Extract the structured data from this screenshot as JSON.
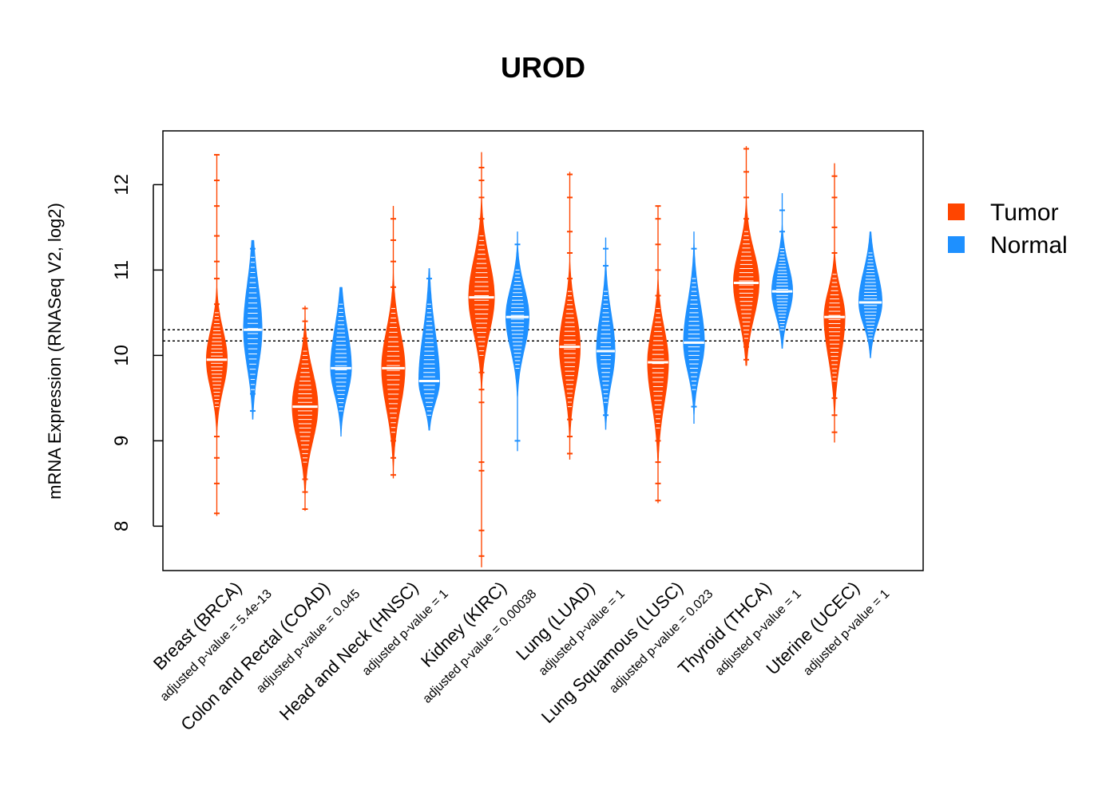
{
  "chart_data": {
    "type": "beanplot",
    "title": "UROD",
    "ylabel": "mRNA Expression (RNASeq V2, log2)",
    "xlabel": "",
    "ylim": [
      7.48,
      12.63
    ],
    "yticks": [
      8,
      9,
      10,
      11,
      12
    ],
    "reference_lines": [
      10.17,
      10.3
    ],
    "legend": {
      "position": "right",
      "entries": [
        {
          "label": "Tumor",
          "color": "#FF4500"
        },
        {
          "label": "Normal",
          "color": "#1E90FF"
        }
      ]
    },
    "groups": [
      {
        "name": "Breast (BRCA)",
        "pvalue_label": "adjusted p-value = 5.4e-13",
        "tumor": {
          "median": 9.95,
          "min": 8.12,
          "max": 12.35,
          "core_min": 9.4,
          "core_max": 10.5,
          "width": 0.45,
          "outliers": [
            8.15,
            8.5,
            8.8,
            9.05,
            10.6,
            10.9,
            11.1,
            11.4,
            11.75,
            12.05,
            12.35
          ]
        },
        "normal": {
          "median": 10.3,
          "min": 9.25,
          "max": 11.35,
          "core_min": 9.6,
          "core_max": 11.15,
          "width": 0.4,
          "outliers": [
            9.35,
            9.55,
            11.25
          ]
        }
      },
      {
        "name": "Colon and Rectal (COAD)",
        "pvalue_label": "adjusted p-value = 0.045",
        "tumor": {
          "median": 9.4,
          "min": 8.18,
          "max": 10.58,
          "core_min": 8.75,
          "core_max": 10.05,
          "width": 0.55,
          "outliers": [
            8.2,
            8.4,
            8.55,
            10.2,
            10.4,
            10.55
          ]
        },
        "normal": {
          "median": 9.85,
          "min": 9.05,
          "max": 10.8,
          "core_min": 9.35,
          "core_max": 10.6,
          "width": 0.45,
          "outliers": []
        }
      },
      {
        "name": "Head and Neck (HNSC)",
        "pvalue_label": "adjusted p-value = 1",
        "tumor": {
          "median": 9.85,
          "min": 8.56,
          "max": 11.75,
          "core_min": 9.1,
          "core_max": 10.55,
          "width": 0.5,
          "outliers": [
            8.6,
            8.8,
            9.0,
            10.8,
            11.1,
            11.35,
            11.6
          ]
        },
        "normal": {
          "median": 9.7,
          "min": 9.12,
          "max": 11.02,
          "core_min": 9.3,
          "core_max": 10.6,
          "width": 0.45,
          "outliers": [
            10.9
          ]
        }
      },
      {
        "name": "Kidney (KIRC)",
        "pvalue_label": "adjusted p-value = 0.00038",
        "tumor": {
          "median": 10.68,
          "min": 7.52,
          "max": 12.38,
          "core_min": 10.0,
          "core_max": 11.4,
          "width": 0.55,
          "outliers": [
            7.65,
            7.95,
            8.65,
            8.75,
            9.45,
            9.6,
            9.8,
            11.6,
            11.85,
            12.05,
            12.2
          ]
        },
        "normal": {
          "median": 10.45,
          "min": 8.88,
          "max": 11.45,
          "core_min": 9.85,
          "core_max": 11.0,
          "width": 0.5,
          "outliers": [
            9.0,
            11.3
          ]
        }
      },
      {
        "name": "Lung (LUAD)",
        "pvalue_label": "adjusted p-value = 1",
        "tumor": {
          "median": 10.1,
          "min": 8.78,
          "max": 12.15,
          "core_min": 9.4,
          "core_max": 10.75,
          "width": 0.45,
          "outliers": [
            8.85,
            9.05,
            9.25,
            10.9,
            11.2,
            11.45,
            11.85,
            12.12
          ]
        },
        "normal": {
          "median": 10.05,
          "min": 9.13,
          "max": 11.38,
          "core_min": 9.45,
          "core_max": 10.75,
          "width": 0.4,
          "outliers": [
            9.3,
            11.05,
            11.25
          ]
        }
      },
      {
        "name": "Lung Squamous (LUSC)",
        "pvalue_label": "adjusted p-value = 0.023",
        "tumor": {
          "median": 9.92,
          "min": 8.27,
          "max": 11.75,
          "core_min": 9.15,
          "core_max": 10.55,
          "width": 0.45,
          "outliers": [
            8.3,
            8.5,
            8.75,
            9.0,
            10.7,
            11.0,
            11.3,
            11.6,
            11.75
          ]
        },
        "normal": {
          "median": 10.15,
          "min": 9.2,
          "max": 11.45,
          "core_min": 9.6,
          "core_max": 10.9,
          "width": 0.45,
          "outliers": [
            9.4,
            11.25
          ]
        }
      },
      {
        "name": "Thyroid (THCA)",
        "pvalue_label": "adjusted p-value = 1",
        "tumor": {
          "median": 10.85,
          "min": 9.88,
          "max": 12.45,
          "core_min": 10.2,
          "core_max": 11.45,
          "width": 0.55,
          "outliers": [
            9.95,
            10.1,
            11.6,
            11.85,
            12.15,
            12.42
          ]
        },
        "normal": {
          "median": 10.75,
          "min": 10.08,
          "max": 11.9,
          "core_min": 10.3,
          "core_max": 11.25,
          "width": 0.45,
          "outliers": [
            11.45,
            11.7
          ]
        }
      },
      {
        "name": "Uterine (UCEC)",
        "pvalue_label": "adjusted p-value = 1",
        "tumor": {
          "median": 10.45,
          "min": 8.98,
          "max": 12.25,
          "core_min": 9.7,
          "core_max": 10.95,
          "width": 0.45,
          "outliers": [
            9.1,
            9.3,
            9.5,
            11.2,
            11.5,
            11.85,
            12.1
          ]
        },
        "normal": {
          "median": 10.62,
          "min": 9.97,
          "max": 11.45,
          "core_min": 10.2,
          "core_max": 11.2,
          "width": 0.5,
          "outliers": []
        }
      }
    ]
  }
}
